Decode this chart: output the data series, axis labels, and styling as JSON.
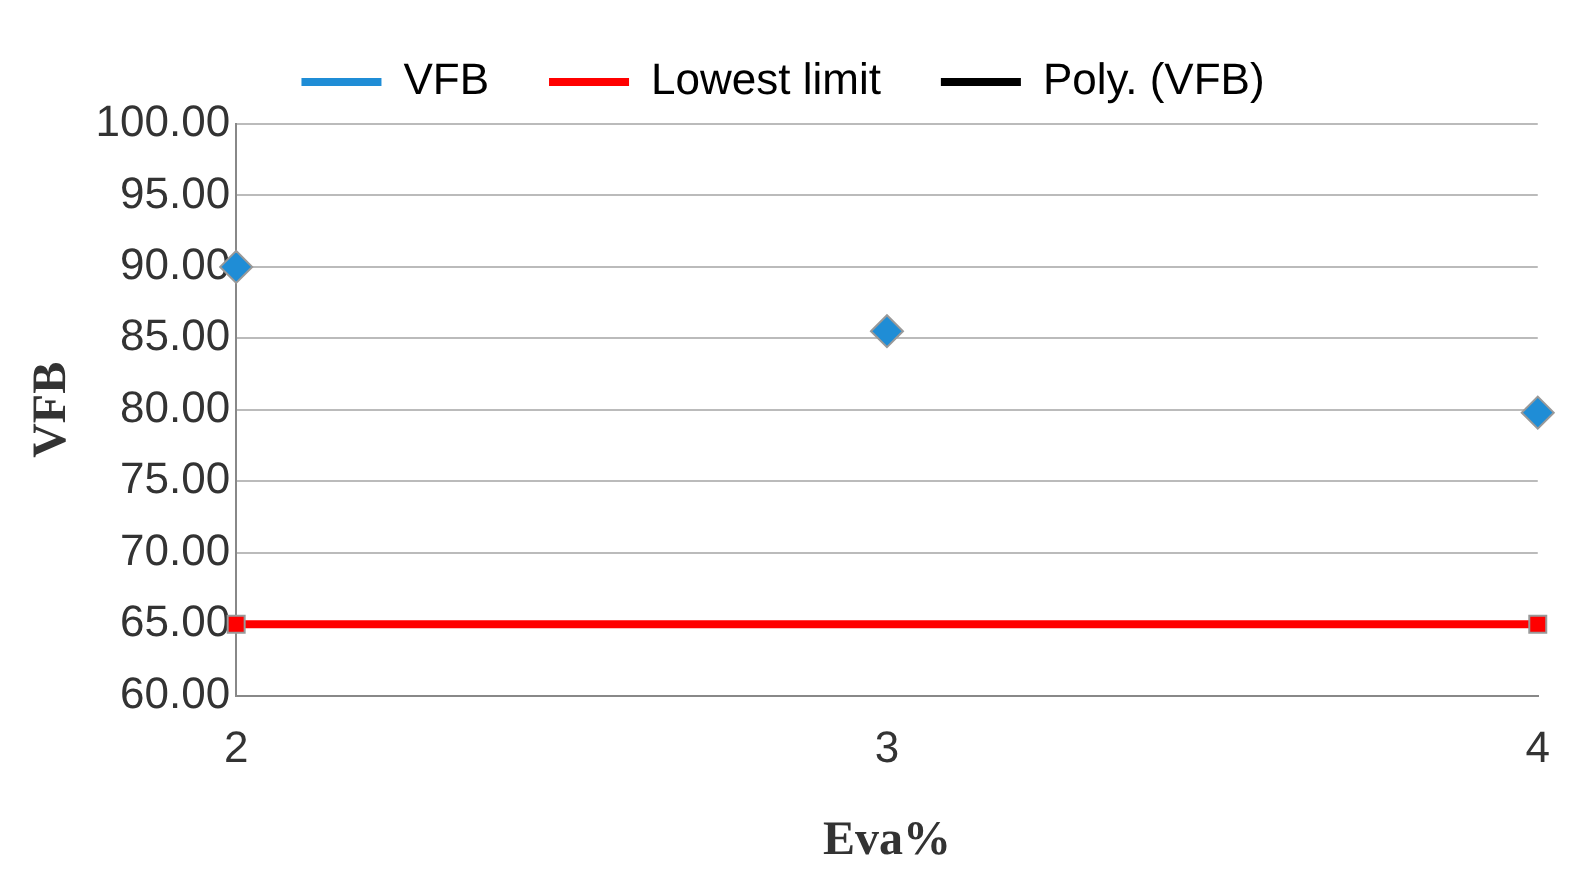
{
  "chart_data": {
    "type": "scatter",
    "xlabel": "Eva%",
    "ylabel": "VFB",
    "x": [
      2,
      3,
      4
    ],
    "series": [
      {
        "name": "VFB",
        "color": "#1f8dd6",
        "marker": "diamond",
        "values": [
          90.0,
          85.5,
          79.8
        ]
      },
      {
        "name": "Lowest limit",
        "type": "line",
        "color": "#ff0000",
        "marker": "square",
        "x": [
          2,
          4
        ],
        "values": [
          65.0,
          65.0
        ]
      },
      {
        "name": "Poly. (VFB)",
        "type": "line",
        "color": "#000000",
        "marker": "none",
        "values": [
          null,
          null,
          null
        ]
      }
    ],
    "xlim": [
      2,
      4
    ],
    "xticks": [
      2,
      3,
      4
    ],
    "ylim": [
      60,
      100
    ],
    "yticks": [
      {
        "value": 60,
        "label": "60.00"
      },
      {
        "value": 65,
        "label": "65.00"
      },
      {
        "value": 70,
        "label": "70.00"
      },
      {
        "value": 75,
        "label": "75.00"
      },
      {
        "value": 80,
        "label": "80.00"
      },
      {
        "value": 85,
        "label": "85.00"
      },
      {
        "value": 90,
        "label": "90.00"
      },
      {
        "value": 95,
        "label": "95.00"
      },
      {
        "value": 100,
        "label": "100.00"
      }
    ],
    "grid": "y",
    "legend": "top"
  }
}
